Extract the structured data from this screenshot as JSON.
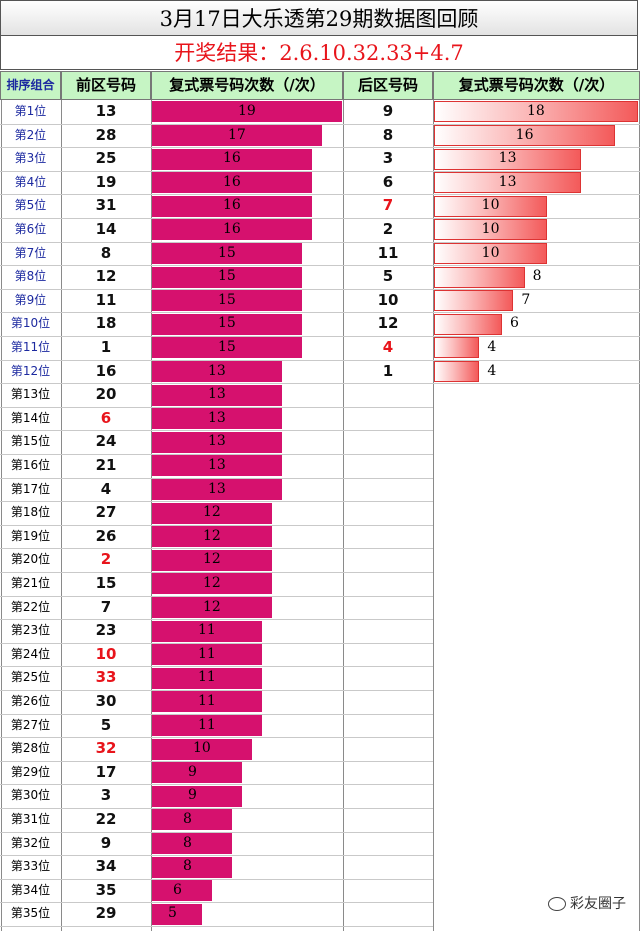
{
  "title": "3月17日大乐透第29期数据图回顾",
  "result": "开奖结果：2.6.10.32.33+4.7",
  "headers": {
    "rank": "排序组合",
    "front_zone": "前区号码",
    "front_count": "复式票号码次数（/次）",
    "back_zone": "后区号码",
    "back_count": "复式票号码次数（/次）"
  },
  "watermark": "彩友圈子",
  "colors": {
    "front_bar": "#d6116e",
    "back_bar": "#f35a5a",
    "winning_number": "#e8141b",
    "header_bg": "#c6f5c4"
  },
  "chart_data": [
    {
      "type": "bar",
      "orientation": "horizontal",
      "title": "复式票号码次数（/次）",
      "categories": [
        "第1位",
        "第2位",
        "第3位",
        "第4位",
        "第5位",
        "第6位",
        "第7位",
        "第8位",
        "第9位",
        "第10位",
        "第11位",
        "第12位",
        "第13位",
        "第14位",
        "第15位",
        "第16位",
        "第17位",
        "第18位",
        "第19位",
        "第20位",
        "第21位",
        "第22位",
        "第23位",
        "第24位",
        "第25位",
        "第26位",
        "第27位",
        "第28位",
        "第29位",
        "第30位",
        "第31位",
        "第32位",
        "第33位",
        "第34位",
        "第35位"
      ],
      "numbers": [
        "13",
        "28",
        "25",
        "19",
        "31",
        "14",
        "8",
        "12",
        "11",
        "18",
        "1",
        "16",
        "20",
        "6",
        "24",
        "21",
        "4",
        "27",
        "26",
        "2",
        "15",
        "7",
        "23",
        "10",
        "33",
        "30",
        "5",
        "32",
        "17",
        "3",
        "22",
        "9",
        "34",
        "35",
        "29"
      ],
      "winning": [
        "2",
        "6",
        "10",
        "32",
        "33"
      ],
      "values": [
        19,
        17,
        16,
        16,
        16,
        16,
        15,
        15,
        15,
        15,
        15,
        13,
        13,
        13,
        13,
        13,
        13,
        12,
        12,
        12,
        12,
        12,
        11,
        11,
        11,
        11,
        11,
        10,
        9,
        9,
        8,
        8,
        8,
        6,
        5
      ],
      "xlim": [
        0,
        19
      ]
    },
    {
      "type": "bar",
      "orientation": "horizontal",
      "title": "复式票号码次数（/次）",
      "categories": [
        "第1位",
        "第2位",
        "第3位",
        "第4位",
        "第5位",
        "第6位",
        "第7位",
        "第8位",
        "第9位",
        "第10位",
        "第11位",
        "第12位"
      ],
      "numbers": [
        "9",
        "8",
        "3",
        "6",
        "7",
        "2",
        "11",
        "5",
        "10",
        "12",
        "4",
        "1"
      ],
      "winning": [
        "4",
        "7"
      ],
      "values": [
        18,
        16,
        13,
        13,
        10,
        10,
        10,
        8,
        7,
        6,
        4,
        4
      ],
      "xlim": [
        0,
        18
      ]
    }
  ]
}
